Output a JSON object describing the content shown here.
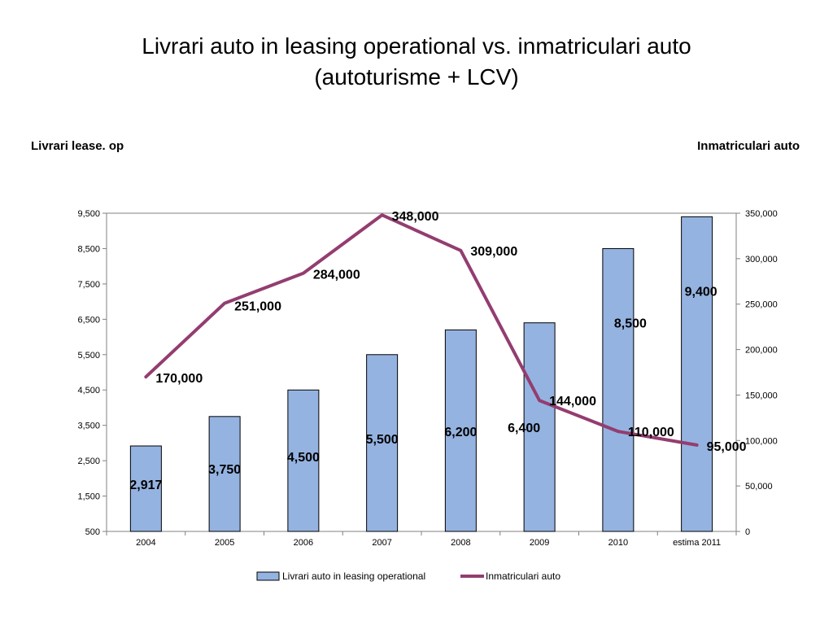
{
  "title_line1": "Livrari auto in leasing operational vs. inmatriculari auto",
  "title_line2": "(autoturisme + LCV)",
  "left_axis_title": "Livrari lease. op",
  "right_axis_title": "Inmatriculari auto",
  "colors": {
    "bar_fill": "#95b3e0",
    "bar_stroke": "#000000",
    "line": "#933d70"
  },
  "chart_data": {
    "type": "bar",
    "categories": [
      "2004",
      "2005",
      "2006",
      "2007",
      "2008",
      "2009",
      "2010",
      "estima 2011"
    ],
    "series": [
      {
        "name": "Livrari auto in leasing operational",
        "type": "bar",
        "axis": "left",
        "values": [
          2917,
          3750,
          4500,
          5500,
          6200,
          6400,
          8500,
          9400
        ],
        "labels": [
          "2,917",
          "3,750",
          "4,500",
          "5,500",
          "6,200",
          "6,400",
          "8,500",
          "9,400"
        ]
      },
      {
        "name": "Inmatriculari auto",
        "type": "line",
        "axis": "right",
        "values": [
          170000,
          251000,
          284000,
          348000,
          309000,
          144000,
          110000,
          95000
        ],
        "labels": [
          "170,000",
          "251,000",
          "284,000",
          "348,000",
          "309,000",
          "144,000",
          "110,000",
          "95,000"
        ]
      }
    ],
    "y_left": {
      "ylim": [
        500,
        9500
      ],
      "ticks": [
        "500",
        "1,500",
        "2,500",
        "3,500",
        "4,500",
        "5,500",
        "6,500",
        "7,500",
        "8,500",
        "9,500"
      ]
    },
    "y_right": {
      "ylim": [
        0,
        350000
      ],
      "ticks": [
        "0",
        "50,000",
        "100,000",
        "150,000",
        "200,000",
        "250,000",
        "300,000",
        "350,000"
      ]
    },
    "legend_position": "bottom",
    "grid": false
  }
}
